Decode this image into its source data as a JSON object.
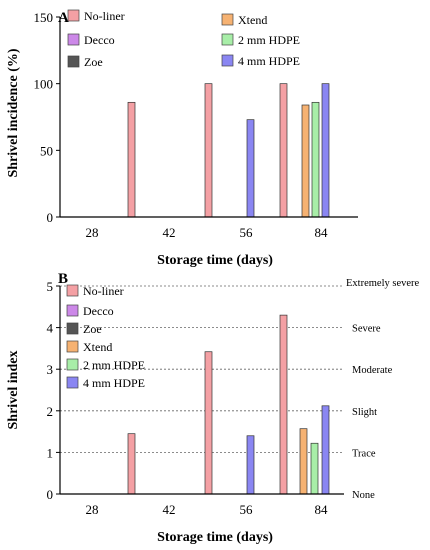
{
  "chart_data": [
    {
      "panel_label": "A",
      "type": "bar",
      "categories": [
        "28",
        "42",
        "56",
        "84"
      ],
      "series": [
        {
          "name": "No-liner",
          "color": "#f4a0a4",
          "values": [
            null,
            86,
            100,
            100
          ]
        },
        {
          "name": "Decco",
          "color": "#cc88e8",
          "values": [
            null,
            null,
            null,
            null
          ]
        },
        {
          "name": "Zoe",
          "color": "#555555",
          "values": [
            null,
            null,
            null,
            null
          ]
        },
        {
          "name": "Xtend",
          "color": "#f6b272",
          "values": [
            null,
            null,
            null,
            84
          ]
        },
        {
          "name": "2 mm HDPE",
          "color": "#a8eea8",
          "values": [
            null,
            null,
            null,
            86
          ]
        },
        {
          "name": "4 mm HDPE",
          "color": "#8a86f2",
          "values": [
            null,
            null,
            73,
            100
          ]
        }
      ],
      "xlabel": "Storage time (days)",
      "ylabel": "Shrivel incidence (%)",
      "ylim": [
        0,
        150
      ],
      "yticks": [
        "0",
        "50",
        "100",
        "150"
      ],
      "grid": false,
      "legend": "top"
    },
    {
      "panel_label": "B",
      "type": "bar",
      "categories": [
        "28",
        "42",
        "56",
        "84"
      ],
      "series": [
        {
          "name": "No-liner",
          "color": "#f4a0a4",
          "values": [
            null,
            1.45,
            3.42,
            4.3
          ]
        },
        {
          "name": "Decco",
          "color": "#cc88e8",
          "values": [
            null,
            null,
            null,
            null
          ]
        },
        {
          "name": "Zoe",
          "color": "#555555",
          "values": [
            null,
            null,
            null,
            null
          ]
        },
        {
          "name": "Xtend",
          "color": "#f6b272",
          "values": [
            null,
            null,
            null,
            1.57
          ]
        },
        {
          "name": "2 mm HDPE",
          "color": "#a8eea8",
          "values": [
            null,
            null,
            null,
            1.22
          ]
        },
        {
          "name": "4 mm HDPE",
          "color": "#8a86f2",
          "values": [
            null,
            null,
            1.4,
            2.12
          ]
        }
      ],
      "xlabel": "Storage time (days)",
      "ylabel": "Shrivel index",
      "ylim": [
        0,
        5
      ],
      "yticks": [
        "0",
        "1",
        "2",
        "3",
        "4",
        "5"
      ],
      "reference_lines": [
        {
          "value": 5,
          "label": "Extremely severe"
        },
        {
          "value": 4,
          "label": "Severe"
        },
        {
          "value": 3,
          "label": "Moderate"
        },
        {
          "value": 2,
          "label": "Slight"
        },
        {
          "value": 1,
          "label": "Trace"
        },
        {
          "value": 0,
          "label": "None"
        }
      ],
      "grid": false,
      "legend": "top-left"
    }
  ]
}
